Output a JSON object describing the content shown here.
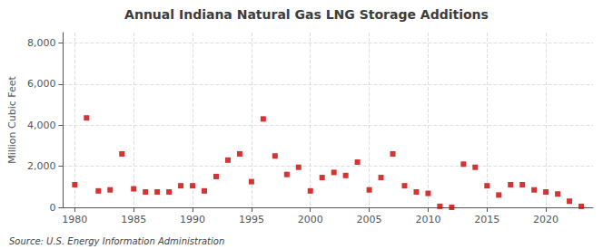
{
  "chart_data": {
    "type": "scatter",
    "title": "Annual Indiana Natural Gas LNG Storage Additions",
    "ylabel": "Million Cubic Feet",
    "annotation": "Source: U.S. Energy Information Administration",
    "x": [
      1980,
      1981,
      1982,
      1983,
      1984,
      1985,
      1986,
      1987,
      1988,
      1989,
      1990,
      1991,
      1992,
      1993,
      1994,
      1995,
      1996,
      1997,
      1998,
      1999,
      2000,
      2001,
      2002,
      2003,
      2004,
      2005,
      2006,
      2007,
      2008,
      2009,
      2010,
      2011,
      2012,
      2013,
      2014,
      2015,
      2016,
      2017,
      2018,
      2019,
      2020,
      2021,
      2022,
      2023
    ],
    "values": [
      1100,
      4350,
      800,
      850,
      2600,
      900,
      750,
      750,
      750,
      1050,
      1050,
      800,
      1500,
      2300,
      2600,
      1250,
      4300,
      2500,
      1600,
      1950,
      800,
      1450,
      1700,
      1550,
      2200,
      850,
      1450,
      2600,
      1050,
      750,
      680,
      50,
      0,
      2100,
      1950,
      1050,
      600,
      1100,
      1100,
      850,
      750,
      650,
      300,
      50
    ],
    "color": "#cc0000",
    "marker": "square",
    "xlim": [
      1979,
      2024
    ],
    "xticks": [
      1980,
      1985,
      1990,
      1995,
      2000,
      2005,
      2010,
      2015,
      2020
    ],
    "ylim": [
      0,
      8500
    ],
    "yticks": [
      0,
      {
        "value": 2000,
        "label": "2,000"
      },
      {
        "value": 4000,
        "label": "4,000"
      },
      {
        "value": 6000,
        "label": "6,000"
      },
      {
        "value": 8000,
        "label": "8,000"
      }
    ],
    "grid": true
  }
}
